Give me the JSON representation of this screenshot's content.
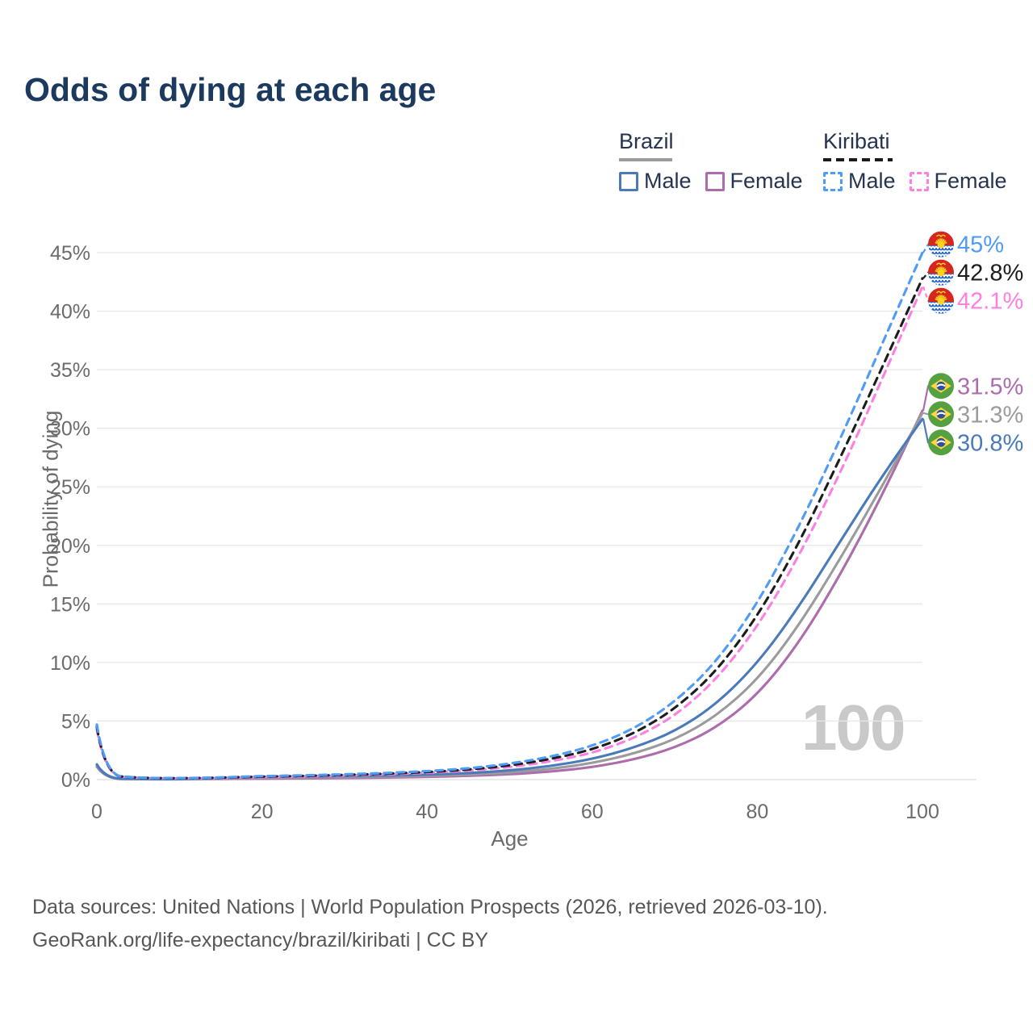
{
  "title": "Odds of dying at each age",
  "watermark": "100",
  "legend": {
    "groups": [
      {
        "label": "Brazil",
        "line_style": "solid",
        "items": [
          {
            "label": "Male"
          },
          {
            "label": "Female"
          }
        ]
      },
      {
        "label": "Kiribati",
        "line_style": "dashed",
        "items": [
          {
            "label": "Male"
          },
          {
            "label": "Female"
          }
        ]
      }
    ]
  },
  "axes": {
    "x": {
      "label": "Age",
      "ticks": [
        0,
        20,
        40,
        60,
        80,
        100
      ],
      "min": 0,
      "max": 100
    },
    "y": {
      "label": "Probability of dying",
      "tick_labels": [
        "0%",
        "5%",
        "10%",
        "15%",
        "20%",
        "25%",
        "30%",
        "35%",
        "40%",
        "45%"
      ],
      "tick_values": [
        0,
        5,
        10,
        15,
        20,
        25,
        30,
        35,
        40,
        45
      ],
      "min": 0,
      "max": 45
    }
  },
  "colors": {
    "brazil_male": "#4a7ab9",
    "brazil_female": "#ad6cac",
    "brazil_all": "#9b9b9b",
    "kiribati_male": "#4f9bf5",
    "kiribati_female": "#fb80e2",
    "kiribati_all": "#1c1c1c",
    "title_text": "#1c3a5e",
    "legend_text": "#25344f",
    "axis_text": "#6b6b6b",
    "grid": "#e7e7e7",
    "watermark": "#c9c9c9",
    "footer_text": "#575757"
  },
  "footer": {
    "line1": "Data sources: United Nations | World Population Prospects (2026, retrieved 2026-03-10).",
    "line2": "GeoRank.org/life-expectancy/brazil/kiribati | CC BY"
  },
  "chart_data": {
    "type": "line",
    "title": "Odds of dying at each age",
    "xlabel": "Age",
    "ylabel": "Probability of dying",
    "xlim": [
      0,
      100
    ],
    "ylim": [
      0,
      45
    ],
    "grid": "horizontal",
    "legend_position": "top-right",
    "x": [
      0,
      1,
      5,
      10,
      15,
      20,
      25,
      30,
      35,
      40,
      45,
      50,
      55,
      60,
      65,
      70,
      75,
      80,
      85,
      90,
      95,
      100
    ],
    "series": [
      {
        "name": "Brazil Female",
        "country": "Brazil",
        "sex": "Female",
        "flag": "brazil",
        "dash": false,
        "color": "#ad6cac",
        "end_label": "31.5%",
        "values": [
          1.1,
          0.08,
          0.03,
          0.03,
          0.06,
          0.08,
          0.1,
          0.13,
          0.17,
          0.23,
          0.31,
          0.45,
          0.68,
          1.05,
          1.7,
          2.7,
          4.4,
          7.2,
          11.6,
          17.4,
          24.1,
          31.5
        ]
      },
      {
        "name": "Brazil",
        "country": "Brazil",
        "sex": "Both",
        "flag": "brazil",
        "dash": false,
        "color": "#9b9b9b",
        "end_label": "31.3%",
        "values": [
          1.2,
          0.09,
          0.04,
          0.03,
          0.09,
          0.16,
          0.19,
          0.21,
          0.25,
          0.31,
          0.42,
          0.6,
          0.9,
          1.4,
          2.2,
          3.4,
          5.4,
          8.5,
          13.1,
          18.8,
          24.9,
          31.3
        ]
      },
      {
        "name": "Brazil Male",
        "country": "Brazil",
        "sex": "Male",
        "flag": "brazil",
        "dash": false,
        "color": "#4a7ab9",
        "end_label": "30.8%",
        "values": [
          1.3,
          0.1,
          0.04,
          0.04,
          0.12,
          0.25,
          0.28,
          0.3,
          0.34,
          0.42,
          0.55,
          0.78,
          1.15,
          1.75,
          2.7,
          4.1,
          6.4,
          9.9,
          14.7,
          20.3,
          25.8,
          30.8
        ]
      },
      {
        "name": "Kiribati Female",
        "country": "Kiribati",
        "sex": "Female",
        "flag": "kiribati",
        "dash": true,
        "color": "#fb80e2",
        "end_label": "42.1%",
        "values": [
          4.3,
          0.36,
          0.13,
          0.1,
          0.14,
          0.22,
          0.27,
          0.35,
          0.44,
          0.57,
          0.75,
          1.05,
          1.55,
          2.25,
          3.5,
          5.4,
          8.5,
          13.0,
          19.0,
          26.1,
          34.0,
          42.1
        ]
      },
      {
        "name": "Kiribati",
        "country": "Kiribati",
        "sex": "Both",
        "flag": "kiribati",
        "dash": true,
        "color": "#1c1c1c",
        "end_label": "42.8%",
        "values": [
          4.5,
          0.38,
          0.14,
          0.11,
          0.16,
          0.26,
          0.31,
          0.4,
          0.5,
          0.64,
          0.85,
          1.2,
          1.75,
          2.55,
          3.9,
          6.0,
          9.2,
          13.9,
          20.1,
          27.4,
          35.0,
          42.8
        ]
      },
      {
        "name": "Kiribati Male",
        "country": "Kiribati",
        "sex": "Male",
        "flag": "kiribati",
        "dash": true,
        "color": "#4f9bf5",
        "end_label": "45%",
        "values": [
          4.7,
          0.4,
          0.15,
          0.12,
          0.18,
          0.3,
          0.36,
          0.45,
          0.56,
          0.72,
          0.95,
          1.35,
          1.95,
          2.85,
          4.3,
          6.6,
          10.0,
          15.0,
          21.5,
          29.0,
          37.0,
          45.0
        ]
      }
    ]
  }
}
